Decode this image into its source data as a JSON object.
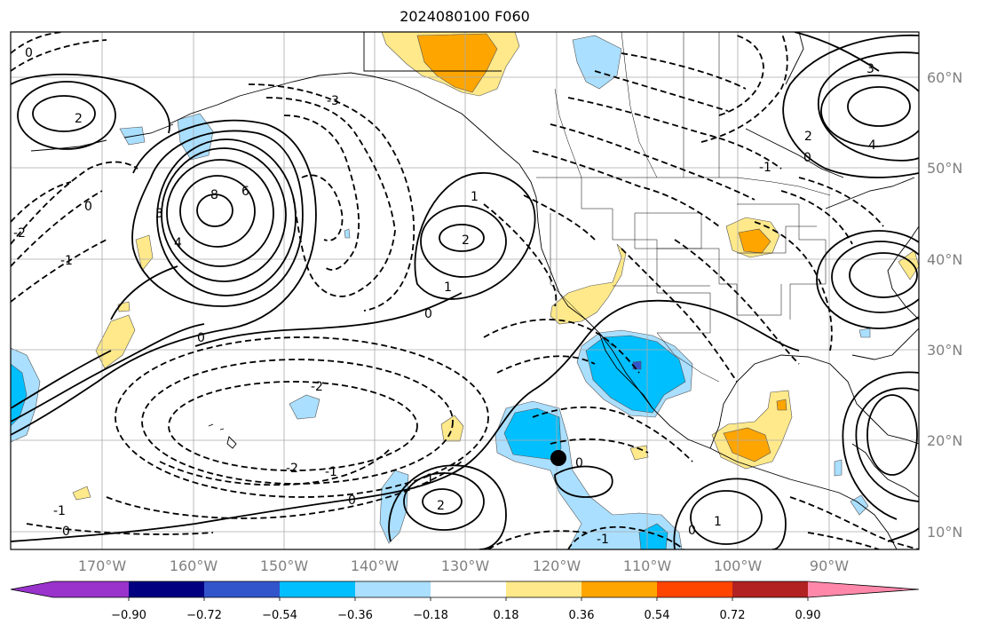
{
  "title": "2024080100 F060",
  "x_ticks": [
    "170°W",
    "160°W",
    "150°W",
    "140°W",
    "130°W",
    "120°W",
    "110°W",
    "100°W",
    "90°W"
  ],
  "y_ticks": [
    "60°N",
    "50°N",
    "40°N",
    "30°N",
    "20°N",
    "10°N"
  ],
  "colorbar": {
    "labels": [
      "−0.90",
      "−0.72",
      "−0.54",
      "−0.36",
      "−0.18",
      "0.18",
      "0.36",
      "0.54",
      "0.72",
      "0.90"
    ],
    "colors": [
      "#9933cc",
      "#000080",
      "#3355cc",
      "#00bfff",
      "#aadfff",
      "#ffffff",
      "#ffe98a",
      "#ffa500",
      "#ff4500",
      "#b22222",
      "#ff88aa"
    ]
  },
  "contour_labels": {
    "c1": "0",
    "c2": "2",
    "c3": "-2",
    "c4": "-1",
    "c5": "8",
    "c6": "6",
    "c7": "4",
    "c8": "3",
    "c9": "-3",
    "c10": "0",
    "c11": "1",
    "c12": "2",
    "c13": "1",
    "c14": "0",
    "c15": "-2",
    "c16": "-1",
    "c17": "0",
    "c18": "1",
    "c19": "2",
    "c20": "0",
    "c21": "1",
    "c22": "-1",
    "c23": "0",
    "c24": "-2",
    "c25": "4",
    "c26": "2",
    "c27": "0",
    "c28": "3",
    "c29": "0",
    "c30": "-1",
    "c31": "0",
    "c32": "-1"
  },
  "marker": "black-dot"
}
